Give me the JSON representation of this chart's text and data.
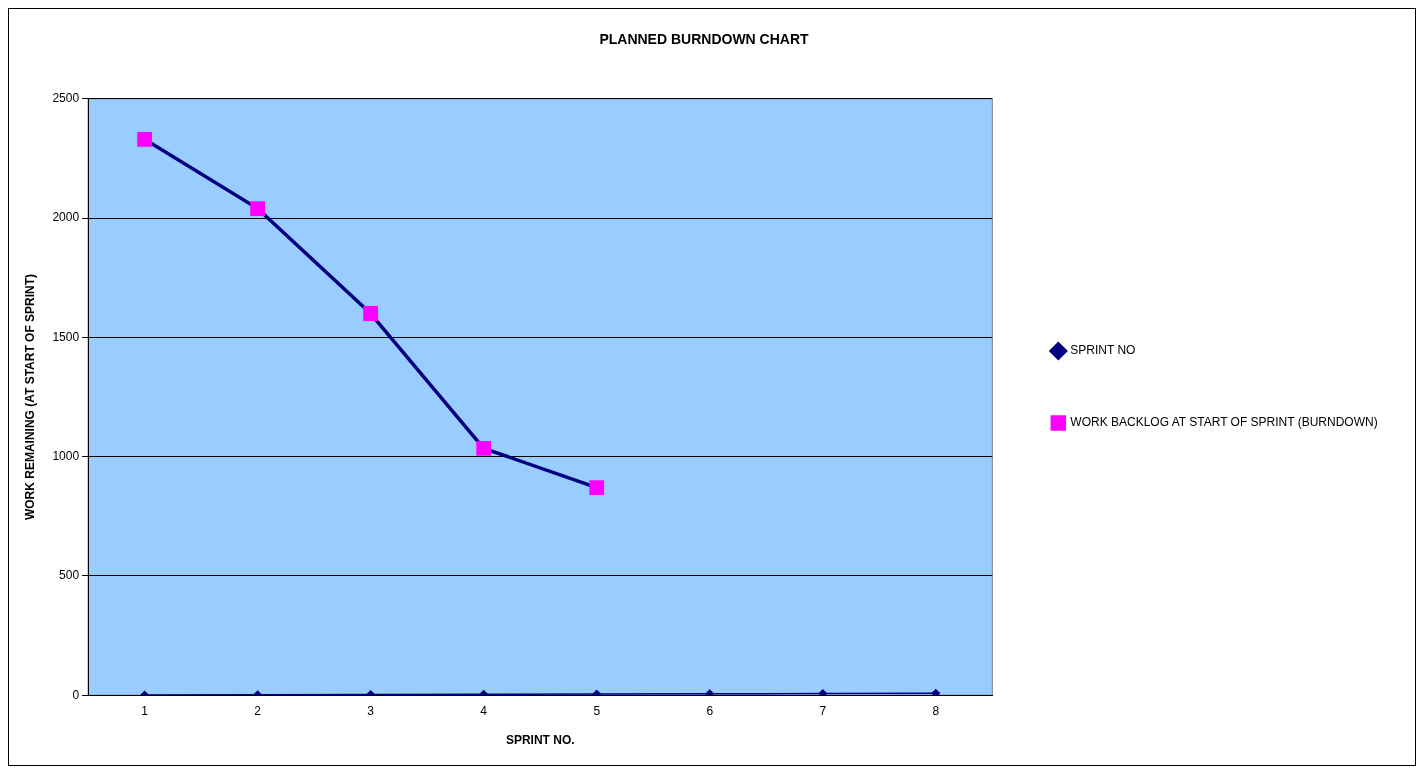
{
  "chart_data": {
    "type": "line",
    "title": "PLANNED BURNDOWN CHART",
    "xlabel": "SPRINT NO.",
    "ylabel": "WORK REMAINING (AT START OF SPRINT)",
    "categories": [
      "1",
      "2",
      "3",
      "4",
      "5",
      "6",
      "7",
      "8"
    ],
    "series": [
      {
        "name": "SPRINT NO",
        "color": "#000080",
        "marker": "diamond",
        "values": [
          1,
          2,
          3,
          4,
          5,
          6,
          7,
          8
        ]
      },
      {
        "name": "WORK BACKLOG AT START OF SPRINT (BURNDOWN)",
        "color": "#000080",
        "marker": "square",
        "values": [
          2330,
          2040,
          1600,
          1035,
          870,
          null,
          null,
          null
        ]
      }
    ],
    "ylim": [
      0,
      2500
    ],
    "yticks": [
      0,
      500,
      1000,
      1500,
      2000,
      2500
    ],
    "grid": "y",
    "legend": "right",
    "line_style": "solid"
  }
}
